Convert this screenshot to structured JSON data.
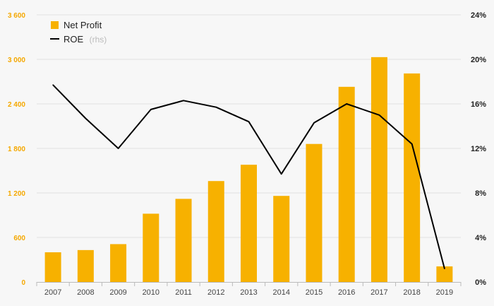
{
  "chart_data": {
    "type": "bar",
    "categories": [
      "2007",
      "2008",
      "2009",
      "2010",
      "2011",
      "2012",
      "2013",
      "2014",
      "2015",
      "2016",
      "2017",
      "2018",
      "2019"
    ],
    "series": [
      {
        "name": "Net Profit",
        "type": "bar",
        "axis": "left",
        "color": "#f7b100",
        "values": [
          400,
          430,
          510,
          920,
          1120,
          1360,
          1580,
          1160,
          1860,
          2630,
          3030,
          2810,
          210
        ]
      },
      {
        "name": "ROE",
        "suffix": "(rhs)",
        "type": "line",
        "axis": "right",
        "color": "#000000",
        "values": [
          17.7,
          14.7,
          12.0,
          15.5,
          16.3,
          15.7,
          14.4,
          9.7,
          14.3,
          16.0,
          15.0,
          12.4,
          1.2
        ]
      }
    ],
    "y_left": {
      "min": 0,
      "max": 3600,
      "ticks": [
        0,
        600,
        1200,
        1800,
        2400,
        3000,
        3600
      ],
      "tick_labels": [
        "0",
        "600",
        "1 200",
        "1 800",
        "2 400",
        "3 000",
        "3 600"
      ],
      "color": "#f5a800"
    },
    "y_right": {
      "min": 0,
      "max": 24,
      "ticks": [
        0,
        4,
        8,
        12,
        16,
        20,
        24
      ],
      "tick_labels": [
        "0%",
        "4%",
        "8%",
        "12%",
        "16%",
        "20%",
        "24%"
      ]
    },
    "grid": true,
    "legend_position": "top-left",
    "title": "",
    "xlabel": "",
    "ylabel": ""
  }
}
